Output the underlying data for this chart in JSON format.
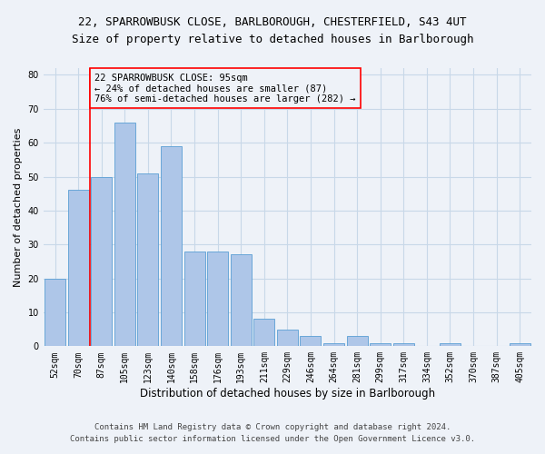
{
  "title1": "22, SPARROWBUSK CLOSE, BARLBOROUGH, CHESTERFIELD, S43 4UT",
  "title2": "Size of property relative to detached houses in Barlborough",
  "xlabel": "Distribution of detached houses by size in Barlborough",
  "ylabel": "Number of detached properties",
  "categories": [
    "52sqm",
    "70sqm",
    "87sqm",
    "105sqm",
    "123sqm",
    "140sqm",
    "158sqm",
    "176sqm",
    "193sqm",
    "211sqm",
    "229sqm",
    "246sqm",
    "264sqm",
    "281sqm",
    "299sqm",
    "317sqm",
    "334sqm",
    "352sqm",
    "370sqm",
    "387sqm",
    "405sqm"
  ],
  "values": [
    20,
    46,
    50,
    66,
    51,
    59,
    28,
    28,
    27,
    8,
    5,
    3,
    1,
    3,
    1,
    1,
    0,
    1,
    0,
    0,
    1
  ],
  "bar_color": "#aec6e8",
  "bar_edge_color": "#5a9fd4",
  "grid_color": "#c8d8e8",
  "annotation_line1": "22 SPARROWBUSK CLOSE: 95sqm",
  "annotation_line2": "← 24% of detached houses are smaller (87)",
  "annotation_line3": "76% of semi-detached houses are larger (282) →",
  "vline_x": 1.5,
  "ylim": [
    0,
    82
  ],
  "yticks": [
    0,
    10,
    20,
    30,
    40,
    50,
    60,
    70,
    80
  ],
  "footer1": "Contains HM Land Registry data © Crown copyright and database right 2024.",
  "footer2": "Contains public sector information licensed under the Open Government Licence v3.0.",
  "background_color": "#eef2f8",
  "title1_fontsize": 9,
  "title2_fontsize": 9,
  "xlabel_fontsize": 8.5,
  "ylabel_fontsize": 8,
  "tick_fontsize": 7,
  "annotation_fontsize": 7.5,
  "footer_fontsize": 6.5
}
